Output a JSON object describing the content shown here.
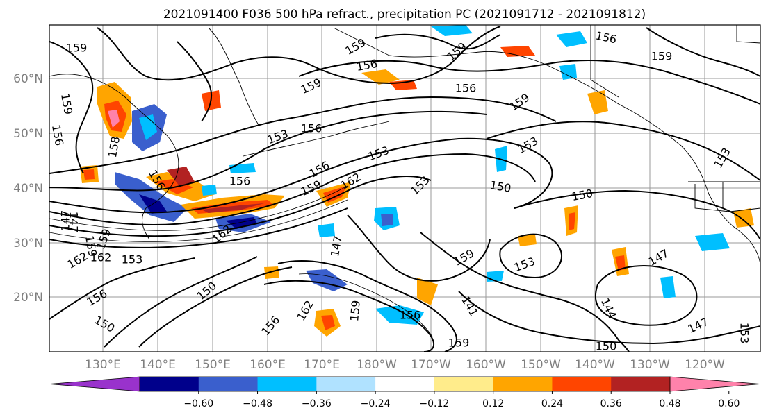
{
  "title": "2021091400 F036 500 hPa refract., precipitation PC (2021091712 - 2021091812)",
  "map": {
    "lat_labels": [
      "60°N",
      "50°N",
      "40°N",
      "30°N",
      "20°N"
    ],
    "lon_labels": [
      "130°E",
      "140°E",
      "150°E",
      "160°E",
      "170°E",
      "180°W",
      "170°W",
      "160°W",
      "150°W",
      "140°W",
      "130°W",
      "120°W"
    ],
    "contour_labels": [
      {
        "text": "159"
      },
      {
        "text": "156"
      },
      {
        "text": "159"
      },
      {
        "text": "159"
      },
      {
        "text": "159"
      },
      {
        "text": "156"
      },
      {
        "text": "159"
      },
      {
        "text": "159"
      },
      {
        "text": "156"
      },
      {
        "text": "159"
      },
      {
        "text": "156"
      },
      {
        "text": "156"
      },
      {
        "text": "153"
      },
      {
        "text": "153"
      },
      {
        "text": "156"
      },
      {
        "text": "159"
      },
      {
        "text": "162"
      },
      {
        "text": "153"
      },
      {
        "text": "150"
      },
      {
        "text": "150"
      },
      {
        "text": "153"
      },
      {
        "text": "147"
      },
      {
        "text": "162"
      },
      {
        "text": "159"
      },
      {
        "text": "156"
      },
      {
        "text": "159"
      },
      {
        "text": "153"
      },
      {
        "text": "147"
      },
      {
        "text": "150"
      },
      {
        "text": "147"
      },
      {
        "text": "141"
      },
      {
        "text": "144"
      },
      {
        "text": "147"
      },
      {
        "text": "150"
      },
      {
        "text": "162"
      },
      {
        "text": "156"
      },
      {
        "text": "162"
      },
      {
        "text": "159"
      },
      {
        "text": "156"
      },
      {
        "text": "153"
      },
      {
        "text": "159"
      },
      {
        "text": "150"
      },
      {
        "text": "153"
      },
      {
        "text": "158"
      },
      {
        "text": "156"
      },
      {
        "text": "159"
      },
      {
        "text": "153"
      },
      {
        "text": "162"
      },
      {
        "text": "147"
      },
      {
        "text": "156"
      }
    ]
  },
  "colorbar": {
    "colors": [
      "#9932cc",
      "#00008b",
      "#3a5fcd",
      "#00bfff",
      "#b0e2ff",
      "#ffffff",
      "#ffec8b",
      "#ffa500",
      "#ff4500",
      "#b22222",
      "#ff82ab"
    ],
    "tick_labels": [
      "−0.60",
      "−0.48",
      "−0.36",
      "−0.24",
      "−0.12",
      "0.12",
      "0.24",
      "0.36",
      "0.48",
      "0.60"
    ]
  }
}
